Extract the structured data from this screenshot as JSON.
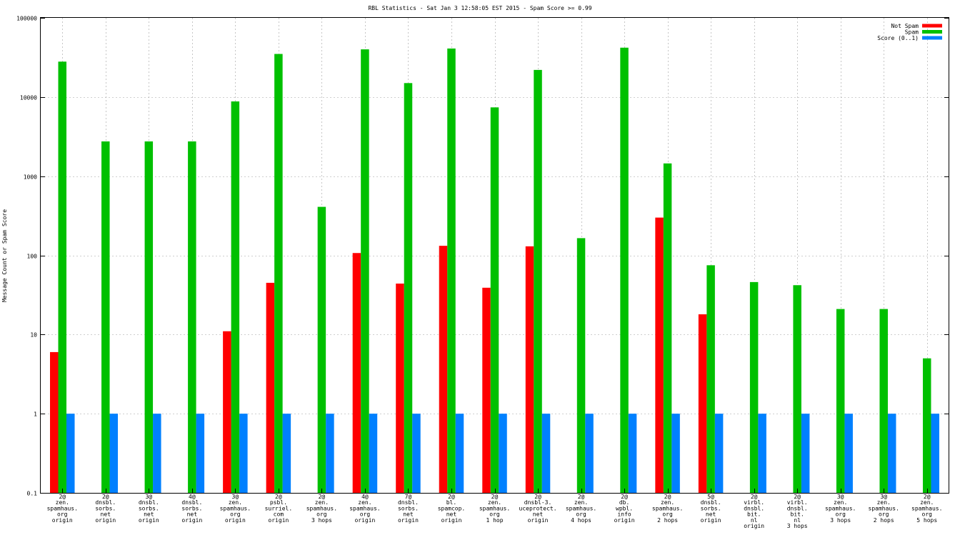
{
  "chart_data": {
    "type": "bar",
    "title": "RBL Statistics - Sat Jan  3 12:58:05 EST 2015 - Spam Score >= 0.99",
    "xlabel": "",
    "ylabel": "Message Count or Spam Score",
    "yscale": "log",
    "ylim": [
      0.1,
      100000
    ],
    "yticks": [
      "0.1",
      "1",
      "10",
      "100",
      "1000",
      "10000",
      "100000"
    ],
    "grid": true,
    "legend_position": "top-right",
    "categories": [
      [
        "2@",
        "zen.",
        "spamhaus.",
        "org",
        "origin"
      ],
      [
        "2@",
        "dnsbl.",
        "sorbs.",
        "net",
        "origin"
      ],
      [
        "3@",
        "dnsbl.",
        "sorbs.",
        "net",
        "origin"
      ],
      [
        "4@",
        "dnsbl.",
        "sorbs.",
        "net",
        "origin"
      ],
      [
        "3@",
        "zen.",
        "spamhaus.",
        "org",
        "origin"
      ],
      [
        "2@",
        "psbl.",
        "surriel.",
        "com",
        "origin"
      ],
      [
        "2@",
        "zen.",
        "spamhaus.",
        "org",
        "3 hops"
      ],
      [
        "4@",
        "zen.",
        "spamhaus.",
        "org",
        "origin"
      ],
      [
        "7@",
        "dnsbl.",
        "sorbs.",
        "net",
        "origin"
      ],
      [
        "2@",
        "bl.",
        "spamcop.",
        "net",
        "origin"
      ],
      [
        "2@",
        "zen.",
        "spamhaus.",
        "org",
        "1 hop"
      ],
      [
        "2@",
        "dnsbl-3.",
        "uceprotect.",
        "net",
        "origin"
      ],
      [
        "2@",
        "zen.",
        "spamhaus.",
        "org",
        "4 hops"
      ],
      [
        "2@",
        "db.",
        "wpbl.",
        "info",
        "origin"
      ],
      [
        "2@",
        "zen.",
        "spamhaus.",
        "org",
        "2 hops"
      ],
      [
        "5@",
        "dnsbl.",
        "sorbs.",
        "net",
        "origin"
      ],
      [
        "2@",
        "virbl.",
        "dnsbl.",
        "bit.",
        "nl",
        "origin"
      ],
      [
        "2@",
        "virbl.",
        "dnsbl.",
        "bit.",
        "nl",
        "3 hops"
      ],
      [
        "3@",
        "zen.",
        "spamhaus.",
        "org",
        "3 hops"
      ],
      [
        "3@",
        "zen.",
        "spamhaus.",
        "org",
        "2 hops"
      ],
      [
        "2@",
        "zen.",
        "spamhaus.",
        "org",
        "5 hops"
      ]
    ],
    "series": [
      {
        "name": "Not Spam",
        "color": "#ff0000",
        "values": [
          6,
          null,
          null,
          null,
          11,
          45,
          null,
          107,
          44,
          132,
          39,
          130,
          null,
          null,
          300,
          18,
          null,
          null,
          null,
          null,
          null
        ]
      },
      {
        "name": "Spam",
        "color": "#00c000",
        "values": [
          28000,
          2750,
          2750,
          2750,
          8800,
          35000,
          410,
          40000,
          15000,
          41000,
          7400,
          22000,
          165,
          42000,
          1450,
          75,
          46,
          42,
          21,
          21,
          5
        ]
      },
      {
        "name": "Score (0..1)",
        "color": "#0080ff",
        "values": [
          1,
          1,
          1,
          1,
          1,
          1,
          1,
          1,
          1,
          1,
          1,
          1,
          1,
          1,
          1,
          1,
          1,
          1,
          1,
          1,
          1
        ]
      }
    ]
  }
}
